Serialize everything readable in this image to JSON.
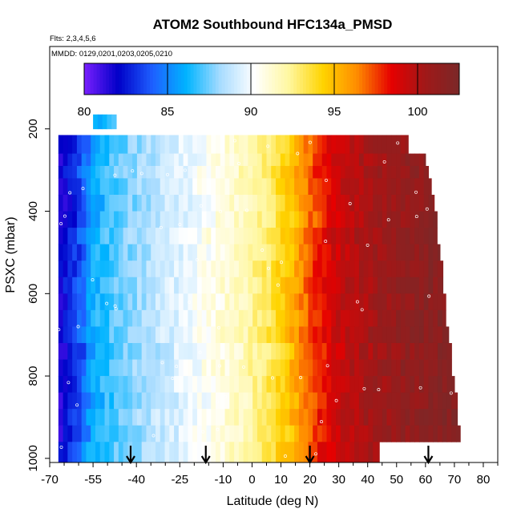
{
  "chart_data": {
    "type": "heatmap",
    "title": "ATOM2 Southbound HFC134a_PMSD",
    "subtitle_flights": "Flts: 2,3,4,5,6",
    "subtitle_dates": "MMDD: 0129,0201,0203,0205,0210",
    "xlabel": "Latitude (deg N)",
    "ylabel": "PSXC (mbar)",
    "xlim": [
      -70,
      85
    ],
    "ylim": [
      1010,
      0
    ],
    "x_ticks": [
      -70,
      -55,
      -40,
      -25,
      -10,
      0,
      10,
      20,
      30,
      40,
      50,
      60,
      70,
      80
    ],
    "x_tick_labels": [
      "-70",
      "-55",
      "-40",
      "-25",
      "-10",
      "0",
      "10",
      "20",
      "30",
      "40",
      "50",
      "60",
      "70",
      "80"
    ],
    "y_ticks": [
      200,
      400,
      600,
      800,
      1000
    ],
    "y_tick_labels": [
      "200",
      "400",
      "600",
      "800",
      "1000"
    ],
    "colorbar": {
      "range": [
        80,
        102.5
      ],
      "ticks": [
        80,
        85,
        90,
        95,
        100
      ],
      "tick_labels": [
        "80",
        "85",
        "90",
        "95",
        "100"
      ],
      "colors": [
        "#7a1fff",
        "#0000c8",
        "#1e5fff",
        "#00b4ff",
        "#a8dcff",
        "#ffffff",
        "#fff7a0",
        "#ffd400",
        "#ff8c00",
        "#e60000",
        "#a01818",
        "#7a2828"
      ]
    },
    "pressure_bands": [
      {
        "top": 165,
        "bottom": 200,
        "lat_min": -55,
        "lat_max": -47
      },
      {
        "top": 215,
        "bottom": 260,
        "lat_min": -67,
        "lat_max": 54
      },
      {
        "top": 260,
        "bottom": 290,
        "lat_min": -67,
        "lat_max": 60
      },
      {
        "top": 290,
        "bottom": 320,
        "lat_min": -67,
        "lat_max": 61
      },
      {
        "top": 320,
        "bottom": 360,
        "lat_min": -67,
        "lat_max": 62
      },
      {
        "top": 360,
        "bottom": 400,
        "lat_min": -67,
        "lat_max": 63
      },
      {
        "top": 400,
        "bottom": 440,
        "lat_min": -67,
        "lat_max": 64
      },
      {
        "top": 440,
        "bottom": 480,
        "lat_min": -67,
        "lat_max": 64
      },
      {
        "top": 480,
        "bottom": 520,
        "lat_min": -67,
        "lat_max": 65
      },
      {
        "top": 520,
        "bottom": 560,
        "lat_min": -67,
        "lat_max": 66
      },
      {
        "top": 560,
        "bottom": 600,
        "lat_min": -67,
        "lat_max": 66
      },
      {
        "top": 600,
        "bottom": 640,
        "lat_min": -67,
        "lat_max": 67
      },
      {
        "top": 640,
        "bottom": 680,
        "lat_min": -67,
        "lat_max": 67
      },
      {
        "top": 680,
        "bottom": 720,
        "lat_min": -67,
        "lat_max": 68
      },
      {
        "top": 720,
        "bottom": 760,
        "lat_min": -67,
        "lat_max": 69
      },
      {
        "top": 760,
        "bottom": 800,
        "lat_min": -67,
        "lat_max": 69
      },
      {
        "top": 800,
        "bottom": 840,
        "lat_min": -67,
        "lat_max": 70
      },
      {
        "top": 840,
        "bottom": 880,
        "lat_min": -67,
        "lat_max": 71
      },
      {
        "top": 880,
        "bottom": 920,
        "lat_min": -67,
        "lat_max": 71
      },
      {
        "top": 920,
        "bottom": 960,
        "lat_min": -67,
        "lat_max": 72
      },
      {
        "top": 960,
        "bottom": 1010,
        "lat_min": -67,
        "lat_max": 44
      }
    ],
    "gradient_stops": [
      {
        "lat": -67,
        "value": 81.5
      },
      {
        "lat": -60,
        "value": 83.5
      },
      {
        "lat": -55,
        "value": 86.0
      },
      {
        "lat": -45,
        "value": 87.5
      },
      {
        "lat": -35,
        "value": 88.5
      },
      {
        "lat": -25,
        "value": 89.5
      },
      {
        "lat": -15,
        "value": 90.5
      },
      {
        "lat": -5,
        "value": 91.5
      },
      {
        "lat": 5,
        "value": 93.0
      },
      {
        "lat": 12,
        "value": 94.5
      },
      {
        "lat": 18,
        "value": 96.5
      },
      {
        "lat": 25,
        "value": 98.5
      },
      {
        "lat": 35,
        "value": 100.0
      },
      {
        "lat": 50,
        "value": 101.0
      },
      {
        "lat": 60,
        "value": 101.5
      },
      {
        "lat": 72,
        "value": 102.0
      }
    ],
    "flight_boundary_arrows_lat": [
      -42,
      -16,
      20,
      61
    ]
  }
}
